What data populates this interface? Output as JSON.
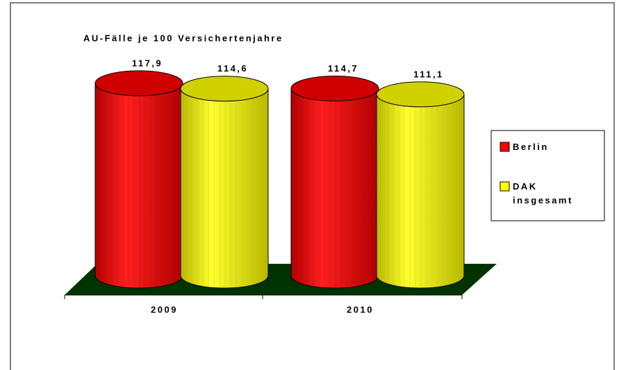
{
  "chart_data": {
    "type": "cylinder-bar",
    "title": "AU-Fälle je 100 Versichertenjahre",
    "categories": [
      "2009",
      "2010"
    ],
    "series": [
      {
        "name": "Berlin",
        "color": "#ff0000",
        "values": [
          117.9,
          114.7
        ],
        "value_labels": [
          "117,9",
          "114,7"
        ]
      },
      {
        "name": "DAK insgesamt",
        "color": "#ffff00",
        "values": [
          114.6,
          111.1
        ],
        "value_labels": [
          "114,6",
          "111,1"
        ]
      }
    ],
    "ylim": [
      0,
      120
    ],
    "legend": "right",
    "floor_color": "#003300"
  }
}
